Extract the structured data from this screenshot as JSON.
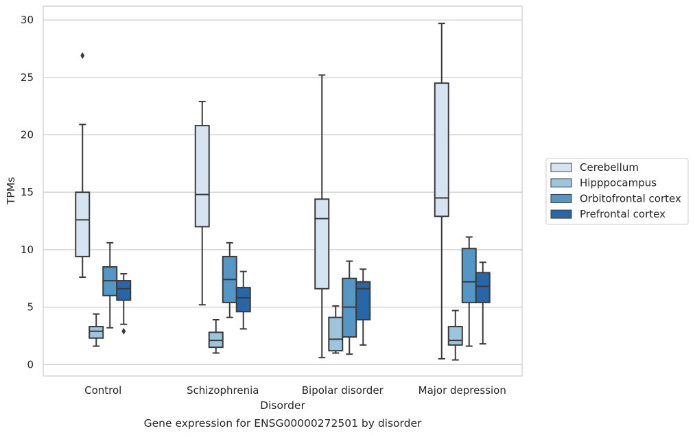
{
  "caption": "Gene expression for ENSG00000272501 by disorder",
  "chart_data": {
    "type": "boxplot",
    "xlabel": "Disorder",
    "ylabel": "TPMs",
    "ylim": [
      -1,
      31.2
    ],
    "yticks": [
      0,
      5,
      10,
      15,
      20,
      25,
      30
    ],
    "grid": "horizontal",
    "legend_position": "right",
    "categories": [
      "Control",
      "Schizophrenia",
      "Bipolar disorder",
      "Major depression"
    ],
    "series": [
      {
        "name": "Cerebellum",
        "color": "#d6e4f2",
        "boxes": [
          {
            "whislo": 7.6,
            "q1": 9.4,
            "med": 12.6,
            "q3": 15.0,
            "whishi": 20.9,
            "fliers": [
              26.9
            ]
          },
          {
            "whislo": 5.2,
            "q1": 12.0,
            "med": 14.8,
            "q3": 20.8,
            "whishi": 22.9,
            "fliers": []
          },
          {
            "whislo": 0.6,
            "q1": 6.6,
            "med": 12.7,
            "q3": 14.4,
            "whishi": 25.2,
            "fliers": []
          },
          {
            "whislo": 0.5,
            "q1": 12.9,
            "med": 14.5,
            "q3": 24.5,
            "whishi": 29.7,
            "fliers": []
          }
        ]
      },
      {
        "name": "Hipppocampus",
        "color": "#9ec5de",
        "boxes": [
          {
            "whislo": 1.6,
            "q1": 2.3,
            "med": 2.9,
            "q3": 3.3,
            "whishi": 4.4,
            "fliers": []
          },
          {
            "whislo": 1.0,
            "q1": 1.5,
            "med": 2.1,
            "q3": 2.8,
            "whishi": 3.9,
            "fliers": []
          },
          {
            "whislo": 1.0,
            "q1": 1.2,
            "med": 2.2,
            "q3": 4.1,
            "whishi": 5.1,
            "fliers": []
          },
          {
            "whislo": 0.4,
            "q1": 1.7,
            "med": 2.1,
            "q3": 3.3,
            "whishi": 4.7,
            "fliers": []
          }
        ]
      },
      {
        "name": "Orbitofrontal cortex",
        "color": "#5497c6",
        "boxes": [
          {
            "whislo": 3.2,
            "q1": 6.0,
            "med": 7.3,
            "q3": 8.5,
            "whishi": 10.6,
            "fliers": []
          },
          {
            "whislo": 4.1,
            "q1": 5.4,
            "med": 7.4,
            "q3": 9.4,
            "whishi": 10.6,
            "fliers": []
          },
          {
            "whislo": 0.9,
            "q1": 2.4,
            "med": 5.0,
            "q3": 7.5,
            "whishi": 9.0,
            "fliers": []
          },
          {
            "whislo": 1.6,
            "q1": 5.4,
            "med": 7.2,
            "q3": 10.1,
            "whishi": 11.1,
            "fliers": []
          }
        ]
      },
      {
        "name": "Prefrontal cortex",
        "color": "#2767a9",
        "boxes": [
          {
            "whislo": 3.5,
            "q1": 5.6,
            "med": 6.6,
            "q3": 7.3,
            "whishi": 7.9,
            "fliers": [
              2.9
            ]
          },
          {
            "whislo": 3.1,
            "q1": 4.6,
            "med": 5.8,
            "q3": 6.7,
            "whishi": 8.1,
            "fliers": []
          },
          {
            "whislo": 1.7,
            "q1": 3.9,
            "med": 6.6,
            "q3": 7.2,
            "whishi": 8.3,
            "fliers": []
          },
          {
            "whislo": 1.8,
            "q1": 5.4,
            "med": 6.8,
            "q3": 8.0,
            "whishi": 8.9,
            "fliers": []
          }
        ]
      }
    ]
  }
}
